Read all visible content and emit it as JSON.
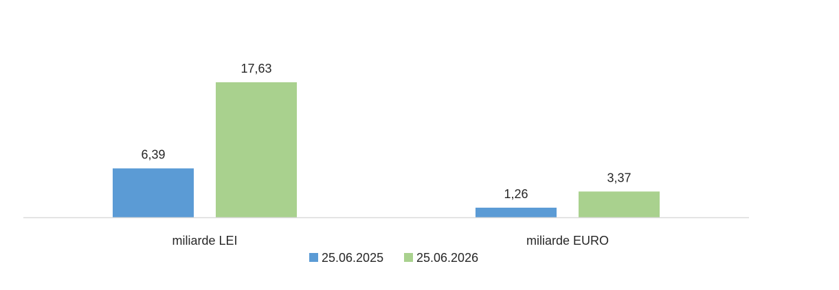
{
  "chart_data": {
    "type": "bar",
    "categories": [
      "miliarde LEI",
      "miliarde EURO"
    ],
    "series": [
      {
        "name": "25.06.2025",
        "values": [
          6.39,
          1.26
        ],
        "labels": [
          "6,39",
          "1,26"
        ],
        "color": "#5b9bd5"
      },
      {
        "name": "25.06.2026",
        "values": [
          17.63,
          3.37
        ],
        "labels": [
          "17,63",
          "3,37"
        ],
        "color": "#a9d18e"
      }
    ],
    "ylim": [
      0,
      19.5
    ],
    "grid": false,
    "legend": "bottom",
    "axis_color": "#d9d9d9"
  }
}
